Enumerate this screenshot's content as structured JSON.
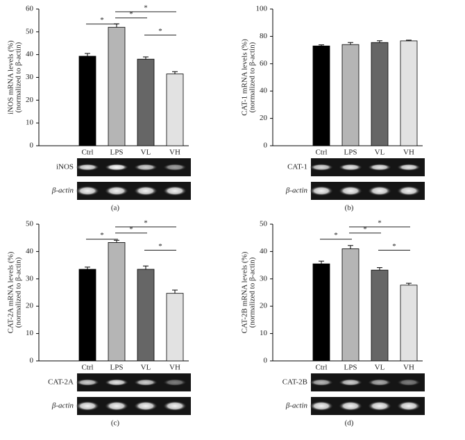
{
  "chart_data": [
    {
      "type": "bar",
      "panel_label": "(a)",
      "y_label": [
        "iNOS mRNA levels (%)",
        "(normalized to β-actin)"
      ],
      "categories": [
        "Ctrl",
        "LPS",
        "VL",
        "VH"
      ],
      "values": [
        39.3,
        52,
        38,
        31.5
      ],
      "errors": [
        1.2,
        1.5,
        1,
        1
      ],
      "colors": [
        "#000000",
        "#b5b5b5",
        "#666666",
        "#e2e2e2"
      ],
      "ylim": [
        0,
        60
      ],
      "yticks": [
        0,
        10,
        20,
        30,
        40,
        50,
        60
      ],
      "significance": [
        {
          "pair": [
            "Ctrl",
            "LPS"
          ],
          "label": "*"
        },
        {
          "pair": [
            "LPS",
            "VL"
          ],
          "label": "*"
        },
        {
          "pair": [
            "LPS",
            "VH"
          ],
          "label": "*"
        },
        {
          "pair": [
            "VL",
            "VH"
          ],
          "label": "*"
        }
      ],
      "gel_labels": [
        "iNOS",
        "β-actin"
      ]
    },
    {
      "type": "bar",
      "panel_label": "(b)",
      "y_label": [
        "CAT-1 mRNA levels (%)",
        "(normalized to β-actin)"
      ],
      "categories": [
        "Ctrl",
        "LPS",
        "VL",
        "VH"
      ],
      "values": [
        73,
        74,
        75.5,
        76.7
      ],
      "errors": [
        0.8,
        1.5,
        1.3,
        0.5
      ],
      "colors": [
        "#000000",
        "#b5b5b5",
        "#666666",
        "#e2e2e2"
      ],
      "ylim": [
        0,
        100
      ],
      "yticks": [
        0,
        20,
        40,
        60,
        80,
        100
      ],
      "significance": [],
      "gel_labels": [
        "CAT-1",
        "β-actin"
      ]
    },
    {
      "type": "bar",
      "panel_label": "(c)",
      "y_label": [
        "CAT-2A mRNA levels (%)",
        "(normalized to β-actin)"
      ],
      "categories": [
        "Ctrl",
        "LPS",
        "VL",
        "VH"
      ],
      "values": [
        33.5,
        43.3,
        33.5,
        24.7
      ],
      "errors": [
        0.8,
        0.8,
        1.2,
        1.2
      ],
      "colors": [
        "#000000",
        "#b5b5b5",
        "#666666",
        "#e2e2e2"
      ],
      "ylim": [
        0,
        50
      ],
      "yticks": [
        0,
        10,
        20,
        30,
        40,
        50
      ],
      "significance": [
        {
          "pair": [
            "Ctrl",
            "LPS"
          ],
          "label": "*"
        },
        {
          "pair": [
            "LPS",
            "VL"
          ],
          "label": "*"
        },
        {
          "pair": [
            "LPS",
            "VH"
          ],
          "label": "*"
        },
        {
          "pair": [
            "VL",
            "VH"
          ],
          "label": "*"
        }
      ],
      "gel_labels": [
        "CAT-2A",
        "β-actin"
      ]
    },
    {
      "type": "bar",
      "panel_label": "(d)",
      "y_label": [
        "CAT-2B mRNA levels (%)",
        "(normalized to β-actin)"
      ],
      "categories": [
        "Ctrl",
        "LPS",
        "VL",
        "VH"
      ],
      "values": [
        35.5,
        41,
        33.2,
        27.7
      ],
      "errors": [
        1,
        1.2,
        0.9,
        0.7
      ],
      "colors": [
        "#000000",
        "#b5b5b5",
        "#666666",
        "#e2e2e2"
      ],
      "ylim": [
        0,
        50
      ],
      "yticks": [
        0,
        10,
        20,
        30,
        40,
        50
      ],
      "significance": [
        {
          "pair": [
            "Ctrl",
            "LPS"
          ],
          "label": "*"
        },
        {
          "pair": [
            "LPS",
            "VL"
          ],
          "label": "*"
        },
        {
          "pair": [
            "LPS",
            "VH"
          ],
          "label": "*"
        },
        {
          "pair": [
            "VL",
            "VH"
          ],
          "label": "*"
        }
      ],
      "gel_labels": [
        "CAT-2B",
        "β-actin"
      ]
    }
  ]
}
